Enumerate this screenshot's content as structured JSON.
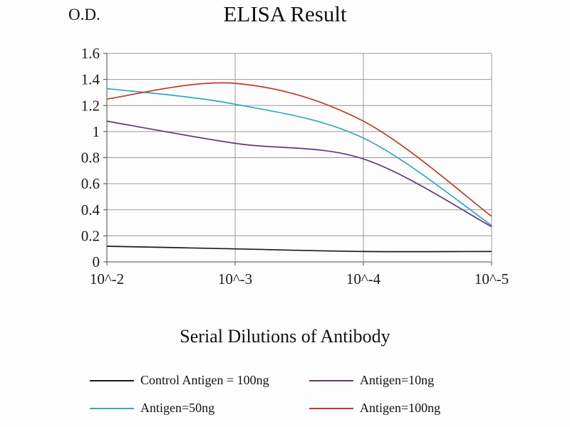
{
  "chart_data": {
    "type": "line",
    "title": "ELISA Result",
    "ylabel": "O.D.",
    "xlabel": "Serial Dilutions of Antibody",
    "categories": [
      "10^-2",
      "10^-3",
      "10^-4",
      "10^-5"
    ],
    "series": [
      {
        "name": "Control Antigen = 100ng",
        "color": "#1a1a1a",
        "values": [
          0.12,
          0.1,
          0.08,
          0.08
        ]
      },
      {
        "name": "Antigen=10ng",
        "color": "#5d3b78",
        "values": [
          1.08,
          0.91,
          0.79,
          0.27
        ]
      },
      {
        "name": "Antigen=50ng",
        "color": "#2fa8c5",
        "values": [
          1.33,
          1.21,
          0.95,
          0.28
        ]
      },
      {
        "name": "Antigen=100ng",
        "color": "#c4392a",
        "values": [
          1.25,
          1.37,
          1.08,
          0.35
        ]
      }
    ],
    "ylim": [
      0,
      1.6
    ],
    "ytick_step": 0.2,
    "ytick_labels": [
      "0",
      "0.2",
      "0.4",
      "0.6",
      "0.8",
      "1",
      "1.2",
      "1.4",
      "1.6"
    ],
    "grid": true,
    "legend_position": "bottom",
    "colors": {
      "gridline": "#9a9a9a",
      "axis": "#4a4a4a",
      "text": "#1a1a1a"
    }
  }
}
